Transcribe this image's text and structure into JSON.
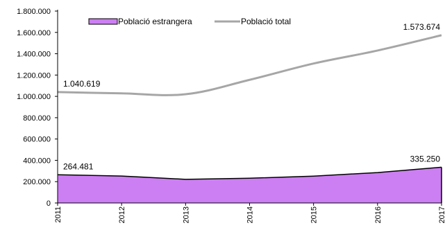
{
  "chart_data": {
    "type": "area",
    "x": [
      "2011",
      "2012",
      "2013",
      "2014",
      "2015",
      "2016",
      "2017"
    ],
    "series": [
      {
        "name": "Població estrangera",
        "kind": "area",
        "color": "#cc7ff2",
        "stroke": "#000000",
        "values": [
          264481,
          253000,
          222000,
          232000,
          252000,
          285000,
          335250
        ]
      },
      {
        "name": "Població total",
        "kind": "line",
        "color": "#a6a6a6",
        "values": [
          1040619,
          1028000,
          1020000,
          1155000,
          1308000,
          1430000,
          1573674
        ]
      }
    ],
    "ylim": [
      0,
      1800000
    ],
    "yticks": [
      "0",
      "200.000",
      "400.000",
      "600.000",
      "800.000",
      "1.000.000",
      "1.200.000",
      "1.400.000",
      "1.600.000",
      "1.800.000"
    ],
    "data_labels": [
      {
        "series": 0,
        "index": 0,
        "text": "264.481"
      },
      {
        "series": 0,
        "index": 6,
        "text": "335.250"
      },
      {
        "series": 1,
        "index": 0,
        "text": "1.040.619"
      },
      {
        "series": 1,
        "index": 6,
        "text": "1.573.674"
      }
    ],
    "legend": {
      "position": "top-left",
      "entries": [
        "Població estrangera",
        "Població total"
      ]
    },
    "grid": false,
    "title": "",
    "xlabel": "",
    "ylabel": ""
  }
}
